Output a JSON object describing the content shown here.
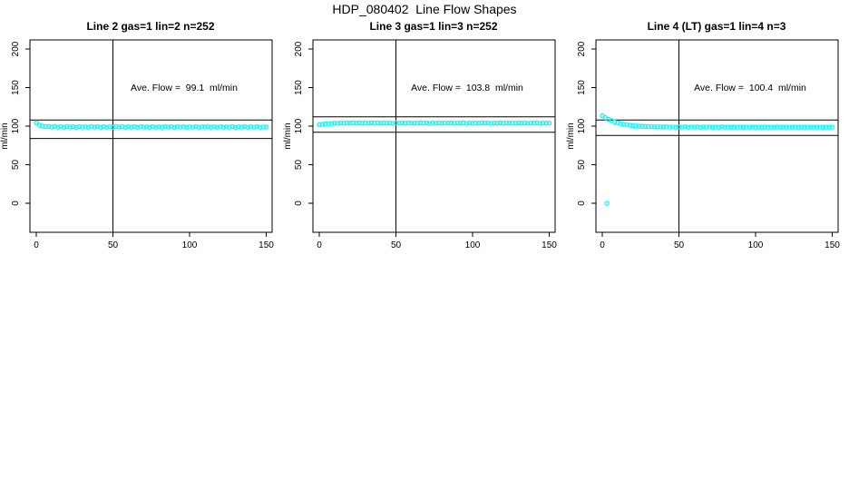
{
  "title": "HDP_080402  Line Flow Shapes",
  "colors": {
    "background": "#FFFFFF",
    "axis": "#000000",
    "points": "#00FFFF"
  },
  "chart_data": [
    {
      "type": "scatter",
      "title": "Line 2 gas=1 lin=2 n=252",
      "annotation": "Ave. Flow =  99.1  ml/min",
      "ave_flow": 99.1,
      "xlabel": "",
      "ylabel": "ml/min",
      "xlim": [
        0,
        150
      ],
      "ylim": [
        0,
        200
      ],
      "x_ticks": [
        0,
        50,
        100,
        150
      ],
      "y_ticks": [
        0,
        50,
        100,
        150,
        200
      ],
      "grid": false,
      "ref_lines": {
        "h_upper": 108,
        "h_lower": 84,
        "v": 50
      },
      "x_start": 0,
      "x_step": 2,
      "points_y": [
        104.5,
        101.3,
        100.0,
        99.4,
        99.6,
        98.8,
        99.5,
        98.7,
        99.3,
        98.6,
        99.4,
        98.8,
        99.2,
        98.5,
        99.3,
        98.7,
        99.1,
        98.6,
        99.4,
        98.8,
        99.2,
        98.6,
        99.3,
        98.7,
        99.1,
        98.5,
        99.2,
        98.8,
        99.4,
        98.6,
        99.1,
        98.7,
        99.3,
        98.6,
        99.2,
        98.8,
        99.0,
        98.6,
        99.3,
        98.7,
        99.1,
        98.5,
        99.2,
        98.7,
        99.3,
        98.6,
        99.1,
        98.8,
        99.2,
        98.6,
        99.0,
        98.7,
        99.3,
        98.6,
        99.1,
        98.8,
        99.2,
        98.5,
        99.0,
        98.7,
        99.2,
        98.6,
        99.1,
        98.7,
        99.3,
        98.6,
        99.0,
        98.8,
        99.2,
        98.6,
        99.1,
        98.7,
        99.2,
        98.6,
        99.0,
        98.8
      ],
      "extra_points": []
    },
    {
      "type": "scatter",
      "title": "Line 3 gas=1 lin=3 n=252",
      "annotation": "Ave. Flow =  103.8  ml/min",
      "ave_flow": 103.8,
      "xlabel": "",
      "ylabel": "ml/min",
      "xlim": [
        0,
        150
      ],
      "ylim": [
        0,
        200
      ],
      "x_ticks": [
        0,
        50,
        100,
        150
      ],
      "y_ticks": [
        0,
        50,
        100,
        150,
        200
      ],
      "grid": false,
      "ref_lines": {
        "h_upper": 112,
        "h_lower": 92,
        "v": 50
      },
      "x_start": 0,
      "x_step": 2,
      "points_y": [
        101.7,
        102.4,
        102.9,
        103.3,
        103.5,
        103.8,
        103.6,
        104.1,
        103.7,
        104.2,
        103.8,
        104.3,
        103.9,
        104.2,
        103.7,
        104.1,
        103.8,
        104.3,
        103.9,
        104.1,
        103.7,
        104.2,
        103.8,
        104.0,
        103.6,
        104.2,
        103.9,
        104.1,
        103.7,
        104.3,
        103.8,
        104.0,
        103.7,
        104.2,
        103.9,
        104.1,
        103.6,
        104.2,
        103.8,
        104.0,
        103.7,
        104.1,
        103.9,
        104.2,
        103.7,
        104.0,
        103.8,
        104.2,
        103.6,
        104.1,
        103.8,
        104.0,
        103.7,
        104.2,
        103.9,
        104.1,
        103.6,
        104.0,
        103.8,
        104.2,
        103.7,
        104.1,
        103.9,
        104.0,
        103.6,
        104.2,
        103.8,
        104.1,
        103.7,
        104.0,
        103.9,
        104.2,
        103.6,
        104.1,
        103.8,
        104.0
      ],
      "extra_points": []
    },
    {
      "type": "scatter",
      "title": "Line 4 (LT) gas=1 lin=4 n=3",
      "annotation": "Ave. Flow =  100.4  ml/min",
      "ave_flow": 100.4,
      "xlabel": "",
      "ylabel": "ml/min",
      "xlim": [
        0,
        150
      ],
      "ylim": [
        0,
        200
      ],
      "x_ticks": [
        0,
        50,
        100,
        150
      ],
      "y_ticks": [
        0,
        50,
        100,
        150,
        200
      ],
      "grid": false,
      "ref_lines": {
        "h_upper": 108,
        "h_lower": 88,
        "v": 50
      },
      "x_start": 0,
      "x_step": 2,
      "points_y": [
        113.5,
        111.0,
        108.8,
        107.0,
        105.4,
        104.2,
        103.2,
        102.4,
        101.7,
        101.1,
        100.7,
        100.3,
        100.0,
        99.8,
        99.6,
        99.4,
        99.3,
        99.1,
        99.0,
        99.0,
        98.9,
        99.1,
        98.7,
        99.0,
        98.6,
        98.9,
        98.7,
        99.0,
        98.6,
        98.9,
        98.7,
        98.9,
        98.6,
        98.8,
        98.7,
        98.9,
        98.5,
        98.8,
        98.6,
        98.9,
        98.7,
        98.8,
        98.5,
        98.8,
        98.6,
        98.8,
        98.5,
        98.7,
        98.6,
        98.8,
        98.5,
        98.7,
        98.6,
        98.8,
        98.5,
        98.7,
        98.5,
        98.8,
        98.6,
        98.7,
        98.5,
        98.7,
        98.6,
        98.8,
        98.5,
        98.7,
        98.5,
        98.7,
        98.6,
        98.7,
        98.5,
        98.7,
        98.5,
        98.6,
        98.5,
        98.7
      ],
      "extra_points": [
        [
          3,
          0
        ]
      ]
    }
  ]
}
